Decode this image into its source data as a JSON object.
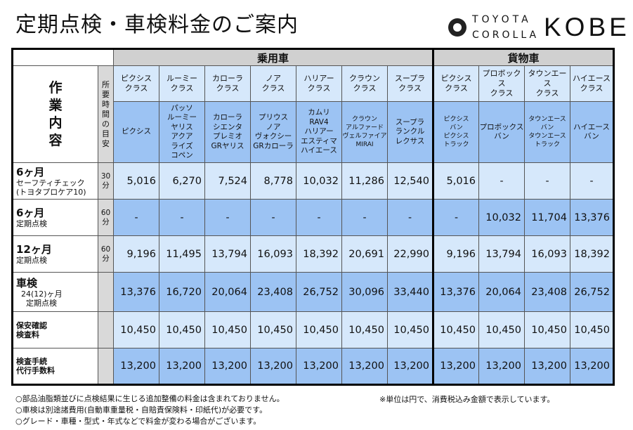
{
  "title": "定期点検・車検料金のご案内",
  "logo": {
    "line1": "TOYOTA",
    "line2": "COROLLA",
    "line3": "KOBE"
  },
  "table": {
    "group_passenger": "乗用車",
    "group_cargo": "貨物車",
    "work_header": [
      "作",
      "業",
      "内",
      "容"
    ],
    "time_header": [
      "所",
      "要",
      "時",
      "間",
      "の",
      "目",
      "安"
    ],
    "classes": [
      {
        "label": [
          "ピクシス",
          "クラス"
        ],
        "models": [
          "ピクシス"
        ]
      },
      {
        "label": [
          "ルーミー",
          "クラス"
        ],
        "models": [
          "パッソ",
          "ルーミー",
          "ヤリス",
          "アクア",
          "ライズ",
          "コペン"
        ]
      },
      {
        "label": [
          "カローラ",
          "クラス"
        ],
        "models": [
          "カローラ",
          "シエンタ",
          "プレミオ",
          "GRヤリス"
        ]
      },
      {
        "label": [
          "ノア",
          "クラス"
        ],
        "models": [
          "プリウス",
          "ノア",
          "ヴォクシー",
          "GRカローラ"
        ]
      },
      {
        "label": [
          "ハリアー",
          "クラス"
        ],
        "models": [
          "カムリ",
          "RAV4",
          "ハリアー",
          "エスティマ",
          "ハイエース"
        ]
      },
      {
        "label": [
          "クラウン",
          "クラス"
        ],
        "models": [
          "クラウン",
          "アルファード",
          "ヴェルファイア",
          "MIRAI"
        ]
      },
      {
        "label": [
          "スープラ",
          "クラス"
        ],
        "models": [
          "スープラ",
          "ランクル",
          "レクサス"
        ]
      },
      {
        "label": [
          "ピクシス",
          "クラス"
        ],
        "models": [
          "ピクシス",
          "バン",
          "ピクシス",
          "トラック"
        ]
      },
      {
        "label": [
          "プロボックス",
          "クラス"
        ],
        "models": [
          "プロボックス",
          "バン"
        ]
      },
      {
        "label": [
          "タウンエース",
          "クラス"
        ],
        "models": [
          "タウンエース",
          "バン",
          "タウンエース",
          "トラック"
        ]
      },
      {
        "label": [
          "ハイエース",
          "クラス"
        ],
        "models": [
          "ハイエース",
          "バン"
        ]
      }
    ],
    "rows": [
      {
        "title": "6ヶ月",
        "sub": [
          "セーフティチェック",
          "(トヨタプロケア10)"
        ],
        "time": [
          "30",
          "分"
        ],
        "values": [
          "5,016",
          "6,270",
          "7,524",
          "8,778",
          "10,032",
          "11,286",
          "12,540",
          "5,016",
          "-",
          "-",
          "-"
        ]
      },
      {
        "title": "6ヶ月",
        "sub": [
          "定期点検"
        ],
        "time": [
          "60",
          "分"
        ],
        "values": [
          "-",
          "-",
          "-",
          "-",
          "-",
          "-",
          "-",
          "-",
          "10,032",
          "11,704",
          "13,376"
        ]
      },
      {
        "title": "12ヶ月",
        "sub": [
          "定期点検"
        ],
        "time": [
          "60",
          "分"
        ],
        "values": [
          "9,196",
          "11,495",
          "13,794",
          "16,093",
          "18,392",
          "20,691",
          "22,990",
          "9,196",
          "13,794",
          "16,093",
          "18,392"
        ]
      },
      {
        "title": "車検",
        "sub": [
          "24(12)ヶ月",
          "定期点検"
        ],
        "time": [],
        "values": [
          "13,376",
          "16,720",
          "20,064",
          "23,408",
          "26,752",
          "30,096",
          "33,440",
          "13,376",
          "20,064",
          "23,408",
          "26,752"
        ]
      },
      {
        "title": "",
        "sub": [
          "保安確認",
          "検査料"
        ],
        "time": [],
        "values": [
          "10,450",
          "10,450",
          "10,450",
          "10,450",
          "10,450",
          "10,450",
          "10,450",
          "10,450",
          "10,450",
          "10,450",
          "10,450"
        ]
      },
      {
        "title": "",
        "sub": [
          "検査手続",
          "代行手数料"
        ],
        "time": [],
        "values": [
          "13,200",
          "13,200",
          "13,200",
          "13,200",
          "13,200",
          "13,200",
          "13,200",
          "13,200",
          "13,200",
          "13,200",
          "13,200"
        ]
      }
    ]
  },
  "notes": [
    "○部品油脂類並びに点検結果に生じる追加整備の料金は含まれておりません。",
    "○車検は別途諸費用(自動車重量税・自賠責保険料・印紙代)が必要です。",
    "○グレード・車種・型式・年式などで料金が変わる場合がございます。"
  ],
  "note_right": "※単位は円で、消費税込み金額で表示しています。"
}
